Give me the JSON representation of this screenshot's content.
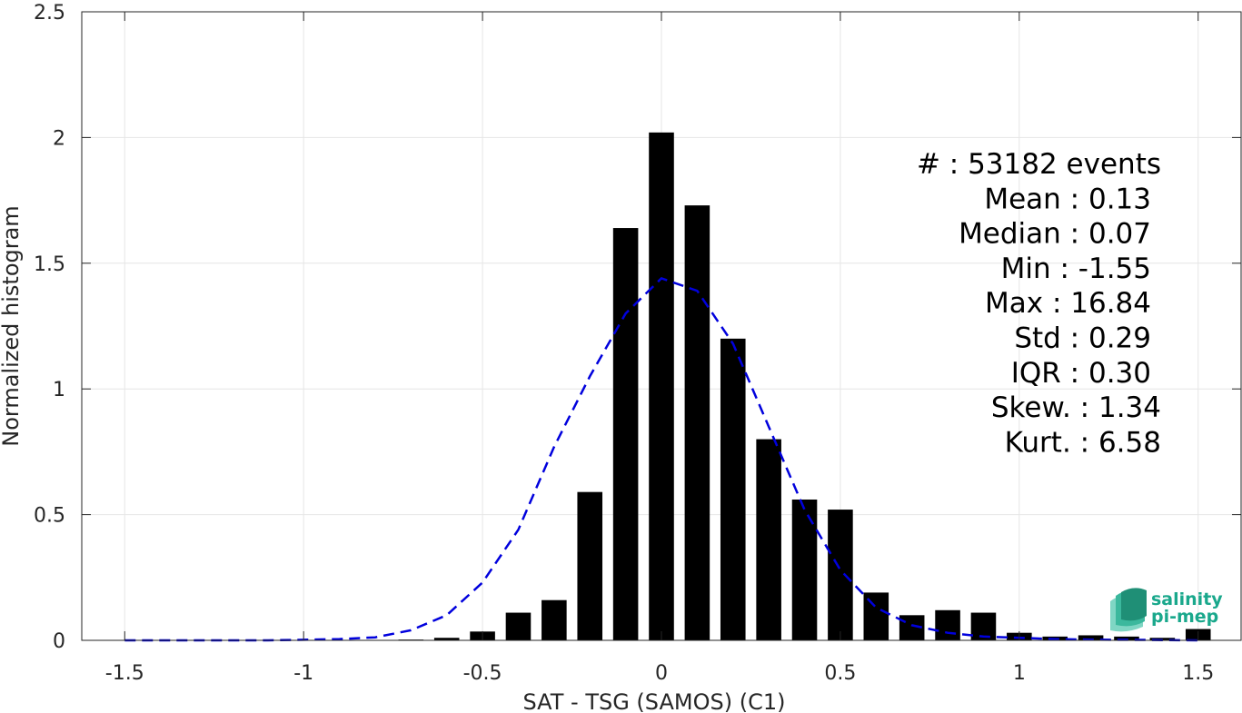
{
  "chart_data": {
    "type": "bar",
    "xlabel": "SAT - TSG (SAMOS) (C1)",
    "ylabel": "Normalized histogram",
    "xlim": [
      -1.62,
      1.62
    ],
    "ylim": [
      0,
      2.5
    ],
    "grid": true,
    "x_ticks": [
      -1.5,
      -1,
      -0.5,
      0,
      0.5,
      1,
      1.5
    ],
    "x_tick_labels": [
      "-1.5",
      "-1",
      "-0.5",
      "0",
      "0.5",
      "1",
      "1.5"
    ],
    "y_ticks": [
      0,
      0.5,
      1,
      1.5,
      2,
      2.5
    ],
    "y_tick_labels": [
      "0",
      "0.5",
      "1",
      "1.5",
      "2",
      "2.5"
    ],
    "bar_width": 0.07,
    "bar_color": "#000000",
    "series": [
      {
        "type": "bar",
        "x": [
          -0.7,
          -0.6,
          -0.5,
          -0.4,
          -0.3,
          -0.2,
          -0.1,
          0.0,
          0.1,
          0.2,
          0.3,
          0.4,
          0.5,
          0.6,
          0.7,
          0.8,
          0.9,
          1.0,
          1.1,
          1.2,
          1.3,
          1.4,
          1.5
        ],
        "values": [
          0.003,
          0.01,
          0.035,
          0.11,
          0.16,
          0.59,
          1.64,
          2.02,
          1.73,
          1.2,
          0.8,
          0.56,
          0.52,
          0.19,
          0.1,
          0.12,
          0.11,
          0.03,
          0.015,
          0.02,
          0.015,
          0.01,
          0.045
        ]
      },
      {
        "type": "line",
        "style": "dashed",
        "color": "#0000dd",
        "x": [
          -1.5,
          -1.4,
          -1.3,
          -1.2,
          -1.1,
          -1.0,
          -0.9,
          -0.8,
          -0.7,
          -0.6,
          -0.5,
          -0.4,
          -0.3,
          -0.2,
          -0.1,
          0.0,
          0.1,
          0.2,
          0.3,
          0.4,
          0.5,
          0.6,
          0.7,
          0.8,
          0.9,
          1.0,
          1.1,
          1.2,
          1.3,
          1.4,
          1.5
        ],
        "values": [
          0,
          0,
          0,
          0,
          0,
          0.002,
          0.005,
          0.012,
          0.04,
          0.1,
          0.23,
          0.44,
          0.77,
          1.05,
          1.3,
          1.44,
          1.39,
          1.18,
          0.85,
          0.52,
          0.28,
          0.13,
          0.06,
          0.03,
          0.015,
          0.01,
          0.005,
          0.003,
          0.002,
          0.001,
          0
        ]
      }
    ],
    "annotations": [
      "#  : 53182 events",
      "Mean : 0.13",
      "Median : 0.07",
      "Min : -1.55",
      "Max : 16.84",
      "Std : 0.29",
      "IQR : 0.30",
      "Skew. : 1.34",
      "Kurt. : 6.58"
    ]
  },
  "logo": {
    "line1": "salinity",
    "line2": "pi-mep",
    "color": "#1aa88c"
  }
}
